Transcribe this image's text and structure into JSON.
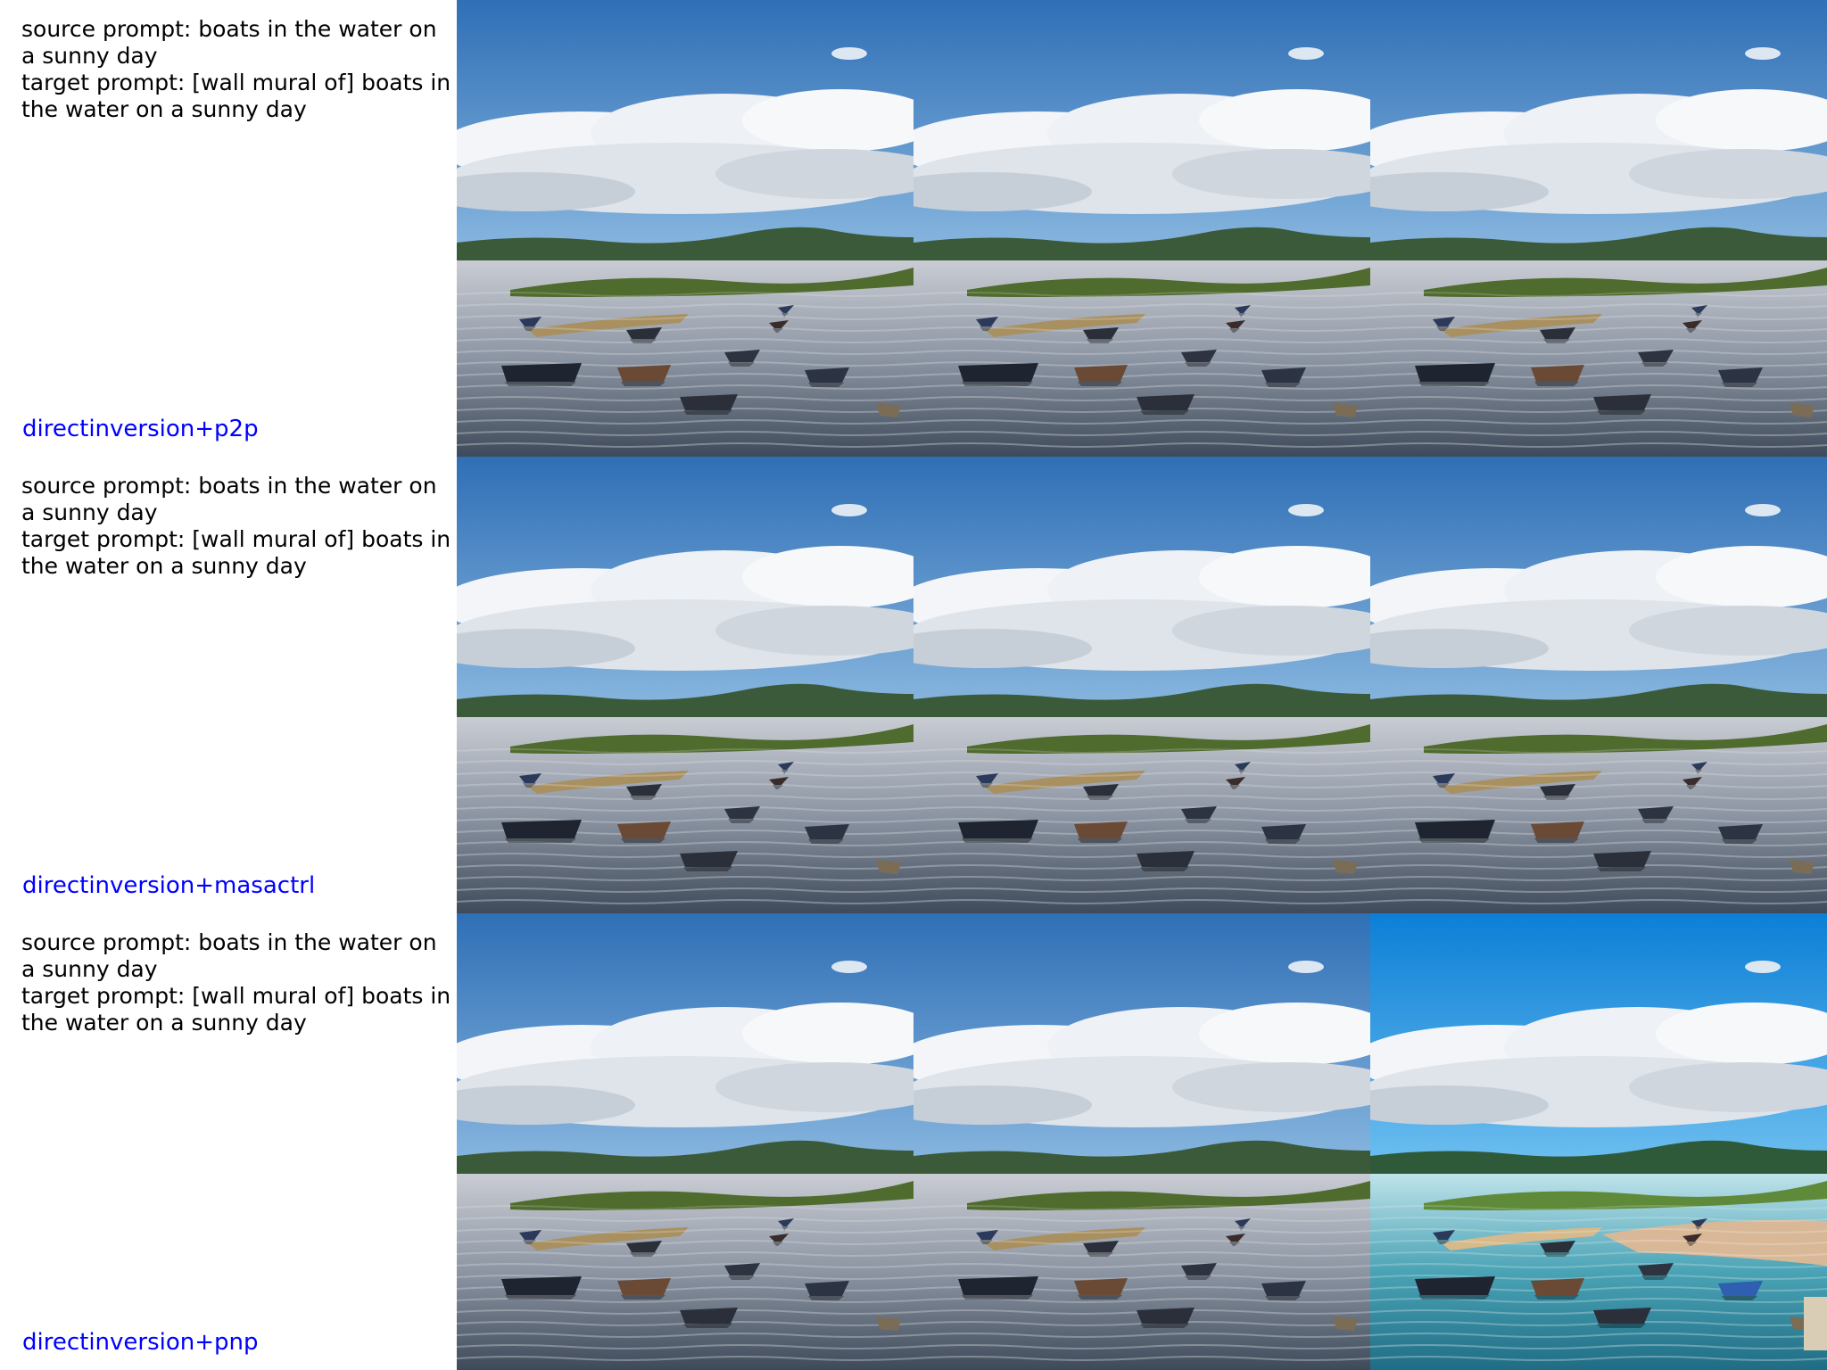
{
  "rows": [
    {
      "source_prompt": "source prompt: boats in the water on a sunny day",
      "target_prompt": "target prompt: [wall mural of] boats in the water on a sunny day",
      "method": "directinversion+p2p"
    },
    {
      "source_prompt": "source prompt: boats in the water on a sunny day",
      "target_prompt": "target prompt: [wall mural of] boats in the water on a sunny day",
      "method": "directinversion+masactrl"
    },
    {
      "source_prompt": "source prompt: boats in the water on a sunny day",
      "target_prompt": "target prompt: [wall mural of] boats in the water on a sunny day",
      "method": "directinversion+pnp"
    }
  ],
  "colors": {
    "method_label": "#0000ff",
    "sky_top": "#2f6fb6",
    "sky_bottom": "#7fb2de",
    "water": "#8a95a4",
    "hills": "#3b5a3a",
    "pnp_sky_top": "#0c7fd6",
    "pnp_water": "#3f93a6"
  }
}
